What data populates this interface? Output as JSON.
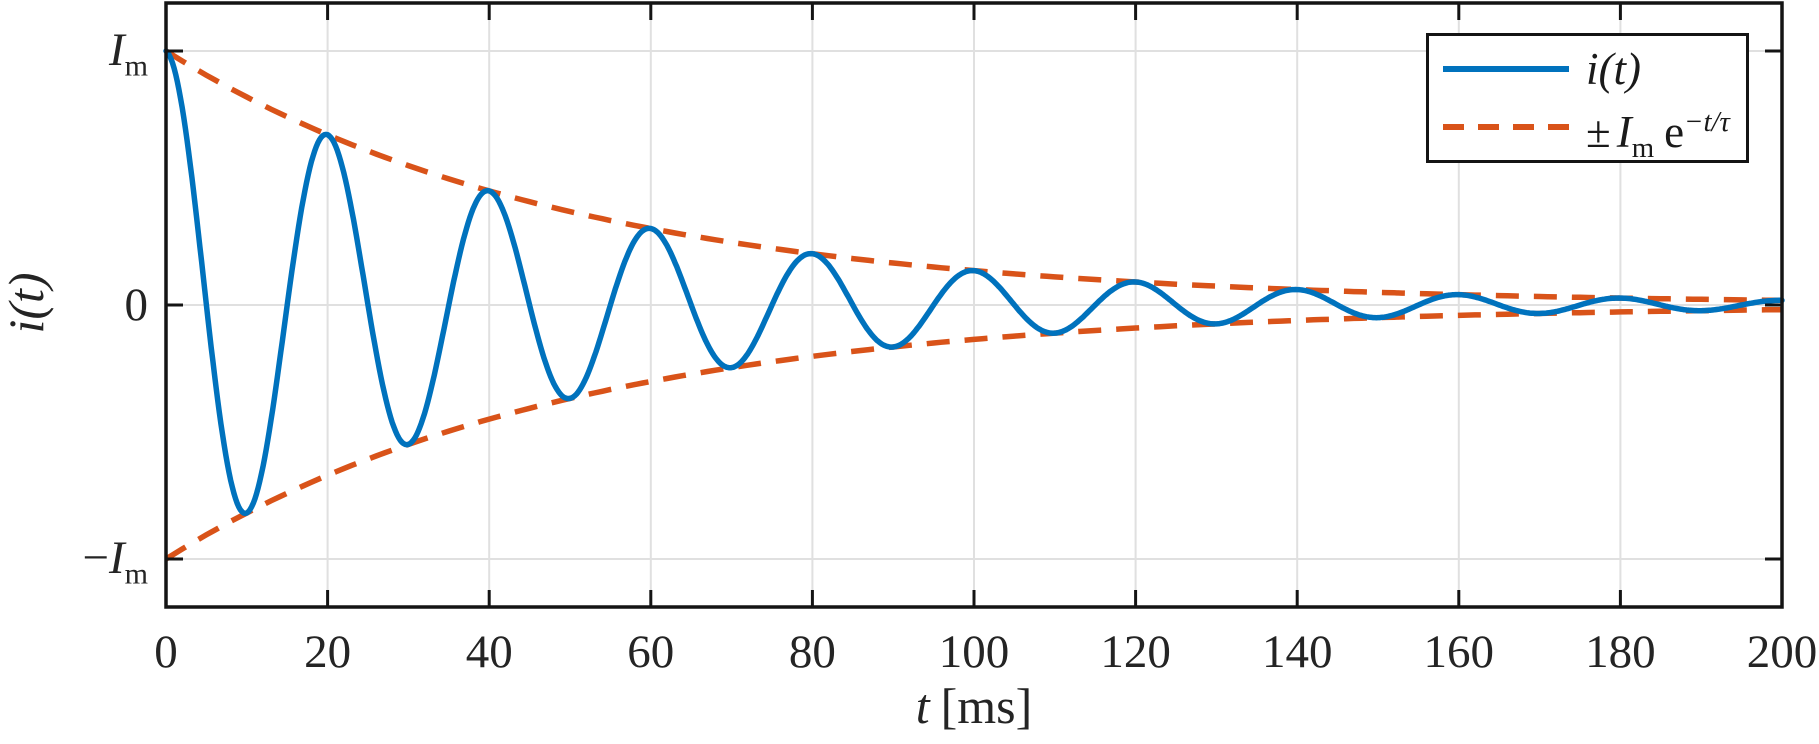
{
  "figure": {
    "background": "#ffffff"
  },
  "axes": {
    "ylabel": "i(t)",
    "xlabel_symbol": "t",
    "xlabel_unit": "[ms]",
    "xtick_labels": [
      "0",
      "20",
      "40",
      "60",
      "80",
      "100",
      "120",
      "140",
      "160",
      "180",
      "200"
    ],
    "ytick_top": {
      "sign": "",
      "base": "I",
      "sub": "m"
    },
    "ytick_zero": "0",
    "ytick_bottom": {
      "sign": "−",
      "base": "I",
      "sub": "m"
    }
  },
  "legend": {
    "position": "northeast",
    "entries": [
      {
        "label": "i(t)",
        "color": "#0072BD",
        "style": "solid"
      },
      {
        "label": "± Im e^(−t/τ)",
        "color": "#D95319",
        "style": "dashed",
        "parts": {
          "pm": "±",
          "base": "I",
          "sub": "m",
          "exp_base": "e",
          "exp": "−t/τ"
        }
      }
    ]
  },
  "chart_data": {
    "type": "line",
    "title": "",
    "xlabel": "t [ms]",
    "ylabel": "i(t)",
    "xlim": [
      0,
      200
    ],
    "ylim_Im_units": [
      -1.19,
      1.19
    ],
    "xticks": [
      0,
      20,
      40,
      60,
      80,
      100,
      120,
      140,
      160,
      180,
      200
    ],
    "yticks_Im_units": [
      1,
      0,
      -1
    ],
    "ytick_display": [
      "Im",
      "0",
      "-Im"
    ],
    "grid": true,
    "legend_position": "northeast",
    "model": "i(t) = Im * exp(-t/tau) * cos(2*pi*t/T)",
    "parameters": {
      "Im": 1,
      "tau_ms": 50,
      "period_ms": 20
    },
    "series": [
      {
        "name": "i(t)",
        "kind": "damped_cosine",
        "color": "#0072BD",
        "style": "solid",
        "linewidth": 5.5
      },
      {
        "name": "+Im e^(-t/tau)",
        "kind": "upper_envelope",
        "color": "#D95319",
        "style": "dashed",
        "linewidth": 5.5
      },
      {
        "name": "-Im e^(-t/tau)",
        "kind": "lower_envelope",
        "color": "#D95319",
        "style": "dashed",
        "linewidth": 5.5
      }
    ],
    "extrema_samples": {
      "t_ms": [
        0,
        10,
        20,
        30,
        40,
        50,
        60,
        70,
        80,
        90,
        100,
        110,
        120,
        130,
        140,
        150,
        160,
        170,
        180,
        190,
        200
      ],
      "i_over_Im": [
        1.0,
        -0.819,
        0.67,
        -0.549,
        0.449,
        -0.368,
        0.301,
        -0.247,
        0.202,
        -0.165,
        0.135,
        -0.111,
        0.091,
        -0.074,
        0.061,
        -0.05,
        0.041,
        -0.033,
        0.027,
        -0.022,
        0.018
      ]
    }
  }
}
